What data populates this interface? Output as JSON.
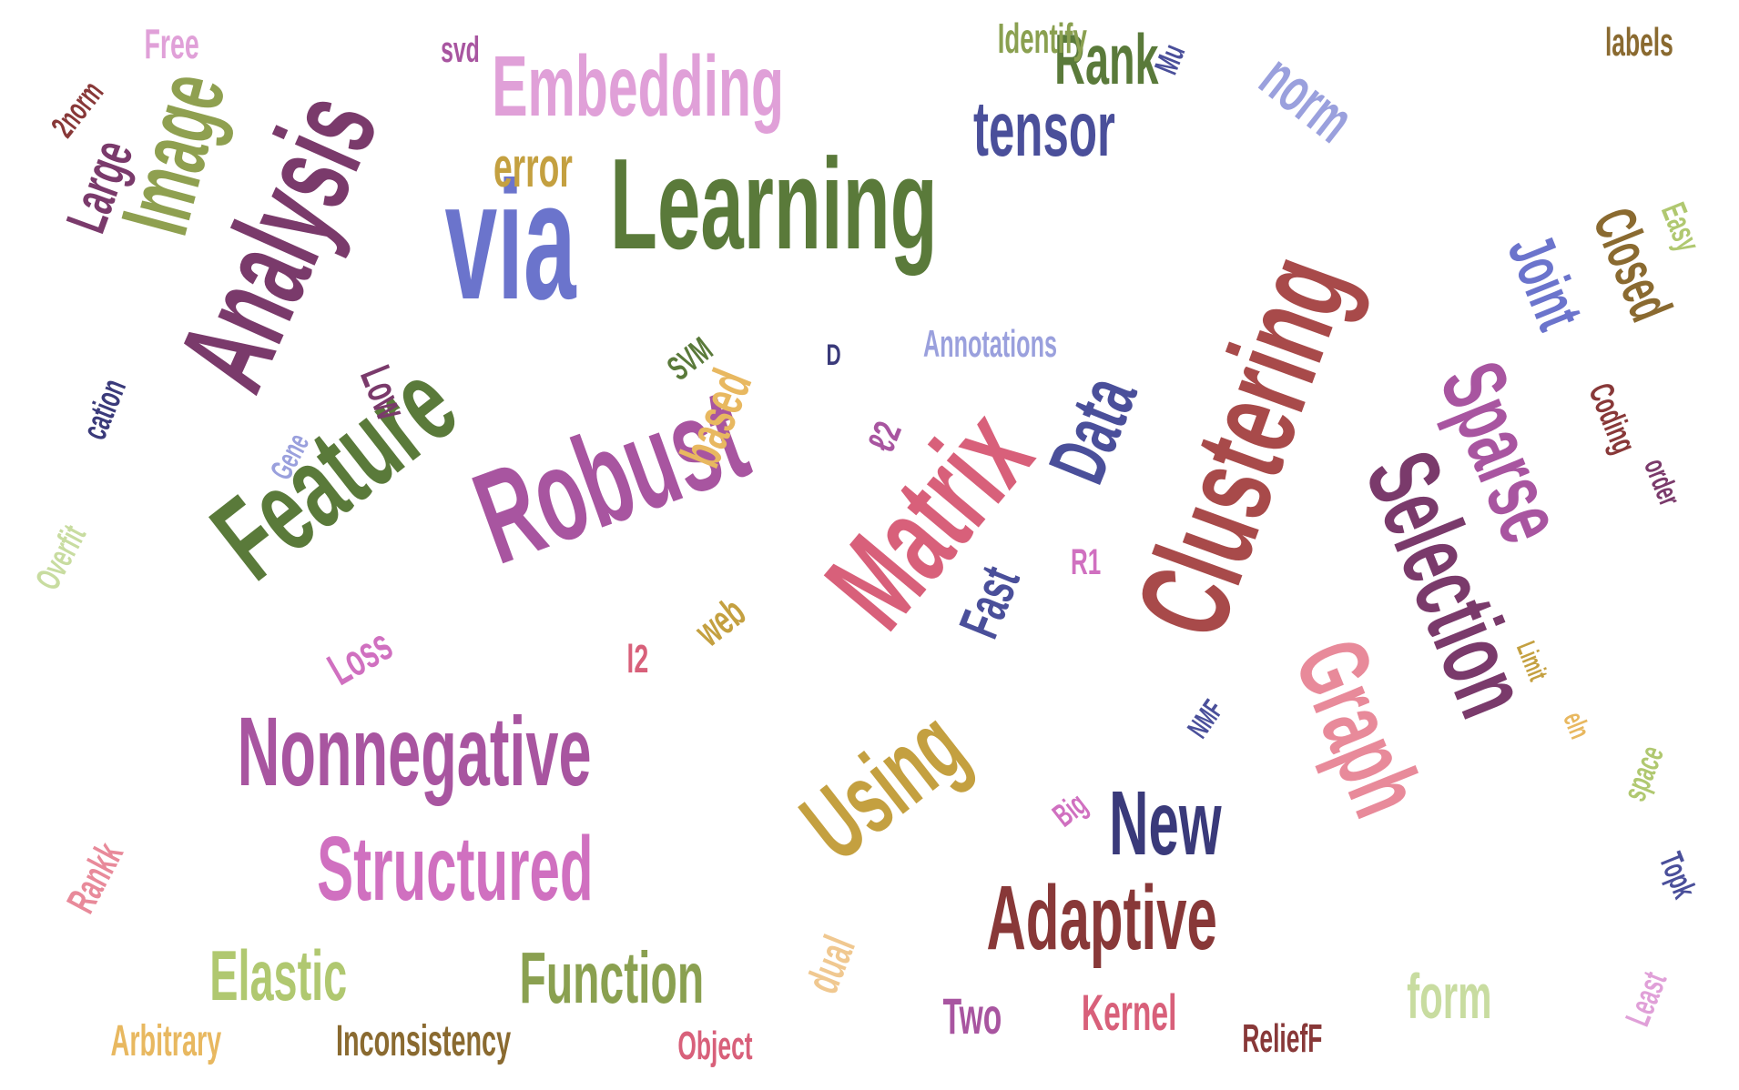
{
  "words": [
    {
      "text": "Learning",
      "color": "#5a7a3a"
    },
    {
      "text": "via",
      "color": "#6b74cc"
    },
    {
      "text": "Analysis",
      "color": "#7a3a6b"
    },
    {
      "text": "Image",
      "color": "#8fa050"
    },
    {
      "text": "Embedding",
      "color": "#e0a0d8"
    },
    {
      "text": "Rank",
      "color": "#5a7a3a"
    },
    {
      "text": "tensor",
      "color": "#4a4f9a"
    },
    {
      "text": "norm",
      "color": "#9aa0dd"
    },
    {
      "text": "Clustering",
      "color": "#a84a4a"
    },
    {
      "text": "Feature",
      "color": "#5a7a3a"
    },
    {
      "text": "Robust",
      "color": "#a855a0"
    },
    {
      "text": "Matrix",
      "color": "#d8607a"
    },
    {
      "text": "Selection",
      "color": "#7a3a6b"
    },
    {
      "text": "Graph",
      "color": "#e88a9a"
    },
    {
      "text": "Sparse",
      "color": "#a855a0"
    },
    {
      "text": "Joint",
      "color": "#6b74cc"
    },
    {
      "text": "Closed",
      "color": "#8a6a30"
    },
    {
      "text": "Nonnegative",
      "color": "#a855a0"
    },
    {
      "text": "Using",
      "color": "#c4a040"
    },
    {
      "text": "New",
      "color": "#3a3a7a"
    },
    {
      "text": "Adaptive",
      "color": "#883838"
    },
    {
      "text": "Structured",
      "color": "#d070c0"
    },
    {
      "text": "Function",
      "color": "#8aa050"
    },
    {
      "text": "Elastic",
      "color": "#b0c870"
    },
    {
      "text": "Data",
      "color": "#4a4f9a"
    },
    {
      "text": "Fast",
      "color": "#4a4f9a"
    },
    {
      "text": "based",
      "color": "#e8b860"
    },
    {
      "text": "error",
      "color": "#c4a040"
    },
    {
      "text": "Large",
      "color": "#7a3a6b"
    },
    {
      "text": "Free",
      "color": "#e0a0d8"
    },
    {
      "text": "svd",
      "color": "#a855a0"
    },
    {
      "text": "Identify",
      "color": "#8aa050"
    },
    {
      "text": "labels",
      "color": "#8a6a30"
    },
    {
      "text": "Mu",
      "color": "#4a4f9a"
    },
    {
      "text": "2norm",
      "color": "#883838"
    },
    {
      "text": "Easy",
      "color": "#b0c870"
    },
    {
      "text": "Annotations",
      "color": "#9aa0dd"
    },
    {
      "text": "SVM",
      "color": "#5a7a3a"
    },
    {
      "text": "D",
      "color": "#3a3a7a"
    },
    {
      "text": "Low",
      "color": "#7a3a6b"
    },
    {
      "text": "cation",
      "color": "#3a3a7a"
    },
    {
      "text": "Gene",
      "color": "#9aa0dd"
    },
    {
      "text": "ℓ2",
      "color": "#a855a0"
    },
    {
      "text": "Coding",
      "color": "#883838"
    },
    {
      "text": "order",
      "color": "#7a3a6b"
    },
    {
      "text": "Limit",
      "color": "#c4a040"
    },
    {
      "text": "R1",
      "color": "#d070c0"
    },
    {
      "text": "Overfit",
      "color": "#c8dca0"
    },
    {
      "text": "web",
      "color": "#c4a040"
    },
    {
      "text": "l2",
      "color": "#d8607a"
    },
    {
      "text": "Loss",
      "color": "#d070c0"
    },
    {
      "text": "NMF",
      "color": "#4a4f9a"
    },
    {
      "text": "eln",
      "color": "#e8b860"
    },
    {
      "text": "space",
      "color": "#b0c870"
    },
    {
      "text": "Big",
      "color": "#d070c0"
    },
    {
      "text": "Topk",
      "color": "#4a4f9a"
    },
    {
      "text": "Rankk",
      "color": "#e88a9a"
    },
    {
      "text": "dual",
      "color": "#f0c890"
    },
    {
      "text": "form",
      "color": "#c8dca0"
    },
    {
      "text": "Least",
      "color": "#e0a0d8"
    },
    {
      "text": "Two",
      "color": "#a855a0"
    },
    {
      "text": "Kernel",
      "color": "#d8607a"
    },
    {
      "text": "Arbitrary",
      "color": "#e8b860"
    },
    {
      "text": "Inconsistency",
      "color": "#8a6a30"
    },
    {
      "text": "Object",
      "color": "#d8607a"
    },
    {
      "text": "ReliefF",
      "color": "#883838"
    }
  ]
}
